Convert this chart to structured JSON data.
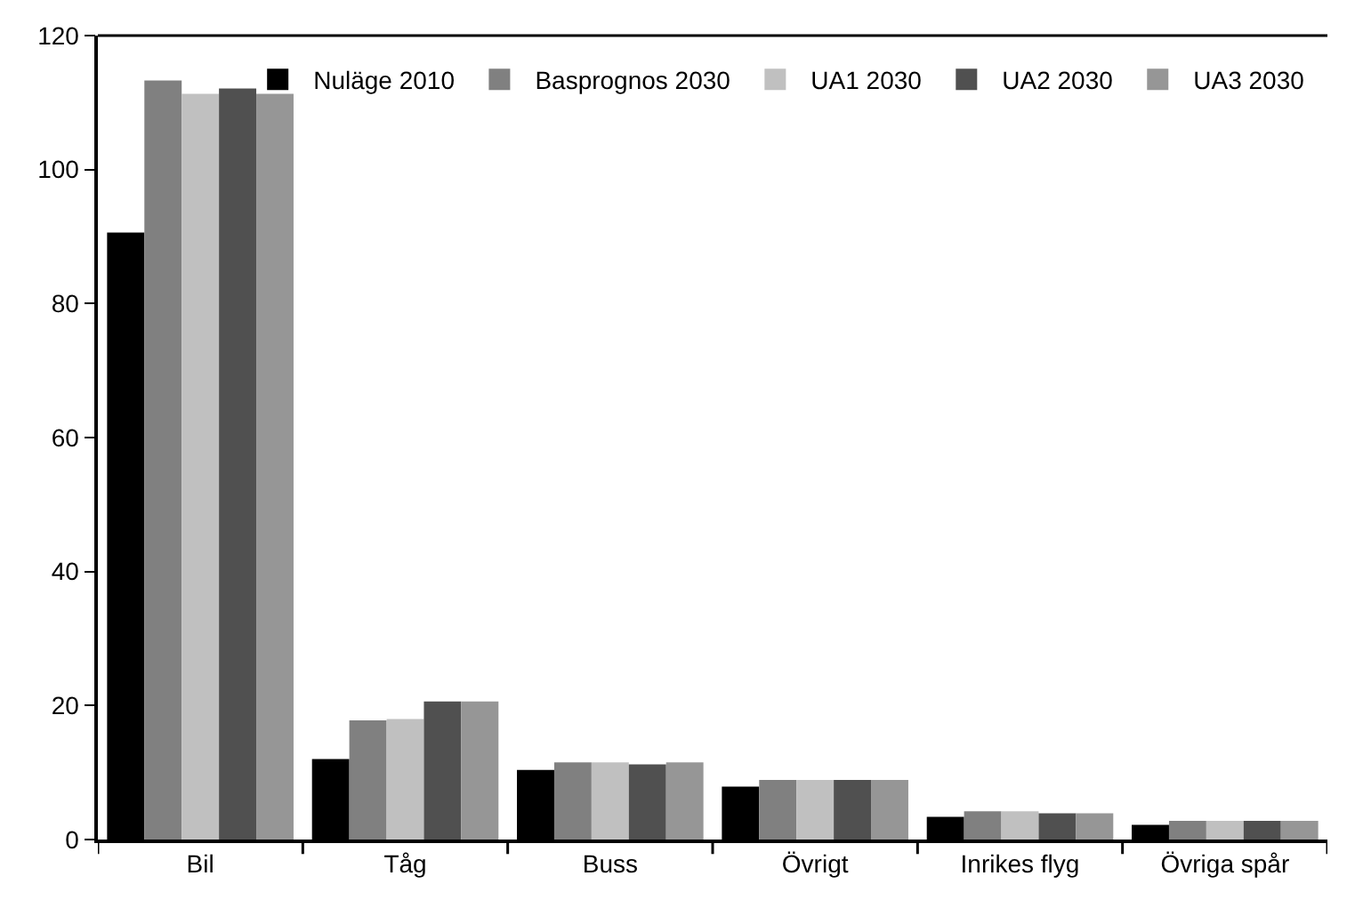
{
  "chart_data": {
    "type": "bar",
    "categories": [
      "Bil",
      "Tåg",
      "Buss",
      "Övrigt",
      "Inrikes flyg",
      "Övriga spår"
    ],
    "series": [
      {
        "name": "Nuläge 2010",
        "color": "#000000",
        "values": [
          90.6,
          12.0,
          10.4,
          7.9,
          3.4,
          2.2
        ]
      },
      {
        "name": "Basprognos 2030",
        "color": "#808080",
        "values": [
          113.3,
          17.8,
          11.5,
          8.9,
          4.2,
          2.8
        ]
      },
      {
        "name": "UA1 2030",
        "color": "#c0c0c0",
        "values": [
          111.3,
          18.0,
          11.5,
          8.9,
          4.2,
          2.8
        ]
      },
      {
        "name": "UA2 2030",
        "color": "#505050",
        "values": [
          112.1,
          20.6,
          11.2,
          8.9,
          3.9,
          2.8
        ]
      },
      {
        "name": "UA3 2030",
        "color": "#969696",
        "values": [
          111.3,
          20.6,
          11.5,
          8.9,
          3.9,
          2.8
        ]
      }
    ],
    "ylim": [
      0,
      120
    ],
    "yticks": [
      0,
      20,
      40,
      60,
      80,
      100,
      120
    ],
    "grid": false,
    "legend": "top right"
  }
}
